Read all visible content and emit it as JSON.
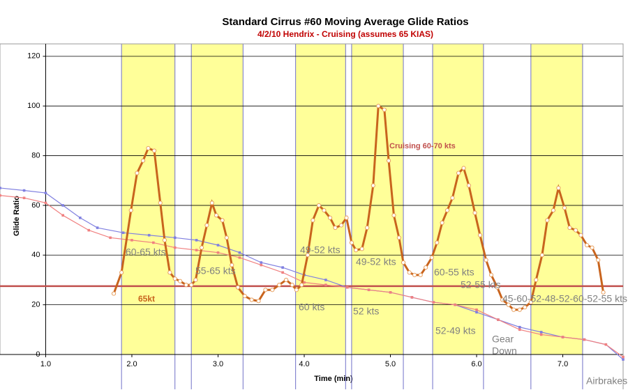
{
  "chart_data": {
    "type": "line",
    "title": "Standard Cirrus #60 Moving Average Glide Ratios",
    "subtitle": "4/2/10 Hendrix - Cruising (assumes 65 KIAS)",
    "x_label": "Time (min)",
    "y_label": "Glide Ratio",
    "xlim": [
      0.47,
      7.7
    ],
    "ylim": [
      0,
      125
    ],
    "xticks": [
      {
        "value": 1,
        "label": "1.0"
      },
      {
        "value": 2,
        "label": "2.0"
      },
      {
        "value": 3,
        "label": "3.0"
      },
      {
        "value": 4,
        "label": "4.0"
      },
      {
        "value": 5,
        "label": "5.0"
      },
      {
        "value": 6,
        "label": "6.0"
      },
      {
        "value": 7,
        "label": "7.0"
      }
    ],
    "yticks": [
      0,
      20,
      40,
      60,
      80,
      100,
      120
    ],
    "grid": true,
    "bands": [
      [
        1.88,
        2.5
      ],
      [
        2.69,
        3.29
      ],
      [
        3.9,
        4.48
      ],
      [
        4.55,
        5.15
      ],
      [
        5.49,
        6.08
      ],
      [
        6.63,
        7.23
      ]
    ],
    "band_color": "#ffff99",
    "reference_line": {
      "value": 27.5,
      "label": "65kt",
      "color": "#c0504d"
    },
    "series": [
      {
        "color": "#8080e0",
        "marker": "square",
        "x": [
          0.47,
          0.75,
          1.0,
          1.2,
          1.4,
          1.6,
          1.9,
          2.2,
          2.5,
          2.75,
          3.0,
          3.25,
          3.5,
          3.75,
          4.0,
          4.25,
          4.5,
          4.75,
          5.0,
          5.25,
          5.5,
          5.75,
          6.0,
          6.25,
          6.5,
          6.75,
          7.0,
          7.25,
          7.5,
          7.7
        ],
        "values": [
          67,
          66,
          65,
          60,
          55,
          51,
          49,
          48,
          47,
          46,
          44,
          41,
          37,
          35,
          32,
          30,
          27,
          26,
          25,
          23,
          21,
          20,
          17,
          14,
          11,
          9,
          7,
          6,
          4,
          -2
        ]
      },
      {
        "color": "#f08080",
        "marker": "square",
        "x": [
          0.47,
          0.75,
          1.0,
          1.2,
          1.5,
          1.75,
          2.0,
          2.25,
          2.5,
          2.75,
          3.0,
          3.25,
          3.5,
          3.75,
          4.0,
          4.25,
          4.5,
          4.75,
          5.0,
          5.25,
          5.5,
          5.75,
          6.0,
          6.25,
          6.5,
          6.75,
          7.0,
          7.25,
          7.5,
          7.7
        ],
        "values": [
          64,
          63,
          61,
          56,
          50,
          47,
          46,
          45,
          43,
          42,
          41,
          39,
          36,
          33,
          29,
          28,
          27,
          26,
          25,
          23,
          21,
          20,
          18,
          14,
          10,
          8,
          7,
          6,
          4,
          -1
        ]
      },
      {
        "color": "#c8641e",
        "marker": "circle",
        "x": [
          1.79,
          1.88,
          1.99,
          2.06,
          2.13,
          2.19,
          2.26,
          2.33,
          2.38,
          2.44,
          2.5,
          2.56,
          2.63,
          2.69,
          2.74,
          2.81,
          2.87,
          2.93,
          2.98,
          3.05,
          3.1,
          3.16,
          3.23,
          3.31,
          3.39,
          3.47,
          3.55,
          3.63,
          3.71,
          3.79,
          3.86,
          3.91,
          3.97,
          4.04,
          4.1,
          4.17,
          4.23,
          4.3,
          4.36,
          4.43,
          4.49,
          4.55,
          4.6,
          4.67,
          4.73,
          4.8,
          4.86,
          4.93,
          4.98,
          5.04,
          5.1,
          5.15,
          5.22,
          5.28,
          5.35,
          5.41,
          5.48,
          5.54,
          5.6,
          5.66,
          5.72,
          5.79,
          5.85,
          5.91,
          5.98,
          6.04,
          6.11,
          6.17,
          6.24,
          6.3,
          6.37,
          6.43,
          6.5,
          6.56,
          6.63,
          6.69,
          6.76,
          6.82,
          6.89,
          6.95,
          7.02,
          7.08,
          7.15,
          7.21,
          7.28,
          7.34,
          7.41,
          7.47
        ],
        "values": [
          24.5,
          33,
          58,
          73,
          78,
          83,
          82,
          61,
          46,
          33,
          30.5,
          29.5,
          28,
          28,
          30,
          43,
          52,
          61,
          56,
          54,
          47,
          36,
          27,
          23.5,
          22,
          21.5,
          26,
          26,
          28,
          30,
          28,
          26,
          28,
          40,
          54,
          60,
          58,
          55,
          51,
          52,
          55,
          45,
          42,
          42.5,
          51,
          68,
          100,
          98.5,
          78,
          56,
          47,
          37,
          33,
          32,
          32,
          35,
          39,
          45,
          53,
          58,
          63,
          73,
          75,
          68,
          57,
          48,
          38,
          32,
          27,
          22,
          20,
          18,
          18,
          19,
          21,
          30,
          40,
          54,
          58,
          67,
          59,
          51,
          50,
          48,
          44,
          43,
          38,
          25
        ]
      }
    ],
    "annotations": [
      {
        "text": "Cruising 60-70 kts",
        "color": "#c0504d"
      },
      {
        "text": "60-65 kts",
        "color": "#808080"
      },
      {
        "text": "55-65 kts",
        "color": "#808080"
      },
      {
        "text": "49-52 kts",
        "color": "#808080"
      },
      {
        "text": "60 kts",
        "color": "#808080"
      },
      {
        "text": "49-52 kts",
        "color": "#808080"
      },
      {
        "text": "52 kts",
        "color": "#808080"
      },
      {
        "text": "60-55 kts",
        "color": "#808080"
      },
      {
        "text": "52-55 kts",
        "color": "#808080"
      },
      {
        "text": "52-49 kts",
        "color": "#808080"
      },
      {
        "text": "45-60-52-48-52-60-52-55 kts",
        "color": "#808080"
      },
      {
        "text": "Gear",
        "color": "#808080"
      },
      {
        "text": "Down",
        "color": "#808080"
      },
      {
        "text": "Airbrakes",
        "color": "#808080"
      }
    ]
  }
}
